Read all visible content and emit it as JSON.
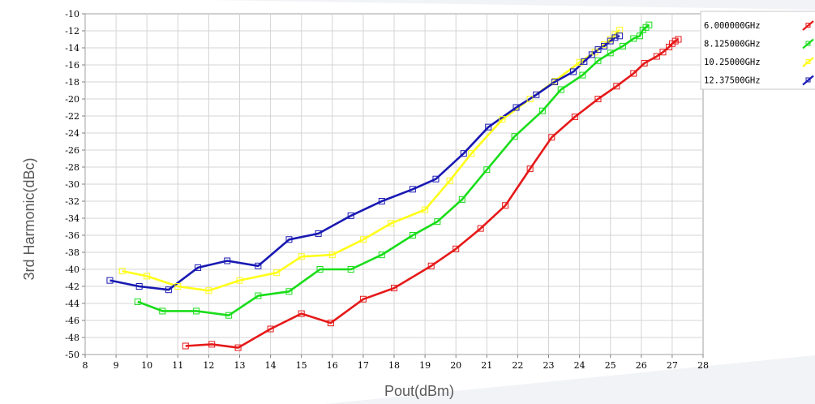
{
  "chart_data": {
    "type": "line",
    "xlabel": "Pout(dBm)",
    "ylabel": "3rd Harmonic(dBc)",
    "xlim": [
      8,
      28
    ],
    "ylim": [
      -50,
      -10
    ],
    "x_ticks": [
      "8",
      "9",
      "10",
      "11",
      "12",
      "13",
      "14",
      "15",
      "16",
      "17",
      "18",
      "19",
      "20",
      "21",
      "22",
      "23",
      "24",
      "25",
      "26",
      "27",
      "28"
    ],
    "y_ticks": [
      "-10",
      "-12",
      "-14",
      "-16",
      "-18",
      "-20",
      "-22",
      "-24",
      "-26",
      "-28",
      "-30",
      "-32",
      "-34",
      "-36",
      "-38",
      "-40",
      "-42",
      "-44",
      "-46",
      "-48",
      "-50"
    ],
    "grid": true,
    "legend_position": "top-right",
    "series": [
      {
        "name": "6.000000GHz",
        "color": "#e61919",
        "points": [
          [
            11.25,
            -49.0
          ],
          [
            12.1,
            -48.8
          ],
          [
            12.95,
            -49.2
          ],
          [
            14.0,
            -47.0
          ],
          [
            15.0,
            -45.2
          ],
          [
            15.95,
            -46.3
          ],
          [
            17.0,
            -43.5
          ],
          [
            18.0,
            -42.2
          ],
          [
            19.2,
            -39.6
          ],
          [
            20.0,
            -37.6
          ],
          [
            20.8,
            -35.2
          ],
          [
            21.6,
            -32.5
          ],
          [
            22.4,
            -28.2
          ],
          [
            23.1,
            -24.5
          ],
          [
            23.85,
            -22.1
          ],
          [
            24.6,
            -20.0
          ],
          [
            25.2,
            -18.5
          ],
          [
            25.75,
            -17.0
          ],
          [
            26.1,
            -15.8
          ],
          [
            26.5,
            -15.0
          ],
          [
            26.7,
            -14.5
          ],
          [
            26.9,
            -13.9
          ],
          [
            27.0,
            -13.5
          ],
          [
            27.1,
            -13.2
          ],
          [
            27.2,
            -13.0
          ]
        ]
      },
      {
        "name": "8.125000GHz",
        "color": "#19dd19",
        "points": [
          [
            9.7,
            -43.8
          ],
          [
            10.5,
            -44.9
          ],
          [
            11.6,
            -44.9
          ],
          [
            12.65,
            -45.4
          ],
          [
            13.6,
            -43.1
          ],
          [
            14.6,
            -42.6
          ],
          [
            15.6,
            -40.0
          ],
          [
            16.6,
            -40.0
          ],
          [
            17.6,
            -38.3
          ],
          [
            18.6,
            -36.0
          ],
          [
            19.4,
            -34.4
          ],
          [
            20.2,
            -31.8
          ],
          [
            21.0,
            -28.3
          ],
          [
            21.9,
            -24.4
          ],
          [
            22.8,
            -21.4
          ],
          [
            23.4,
            -18.9
          ],
          [
            24.1,
            -17.2
          ],
          [
            24.6,
            -15.5
          ],
          [
            25.0,
            -14.6
          ],
          [
            25.4,
            -13.8
          ],
          [
            25.75,
            -12.9
          ],
          [
            25.95,
            -12.6
          ],
          [
            26.05,
            -11.9
          ],
          [
            26.15,
            -11.6
          ],
          [
            26.25,
            -11.3
          ]
        ]
      },
      {
        "name": "10.25000GHz",
        "color": "#ffff1a",
        "points": [
          [
            9.2,
            -40.2
          ],
          [
            10.0,
            -40.8
          ],
          [
            11.0,
            -42.0
          ],
          [
            12.0,
            -42.5
          ],
          [
            13.0,
            -41.3
          ],
          [
            14.2,
            -40.4
          ],
          [
            15.0,
            -38.5
          ],
          [
            16.0,
            -38.3
          ],
          [
            17.0,
            -36.5
          ],
          [
            17.9,
            -34.6
          ],
          [
            19.0,
            -33.0
          ],
          [
            19.8,
            -29.6
          ],
          [
            20.5,
            -26.4
          ],
          [
            21.5,
            -22.4
          ],
          [
            22.4,
            -20.0
          ],
          [
            23.2,
            -17.9
          ],
          [
            24.0,
            -15.7
          ],
          [
            24.5,
            -14.5
          ],
          [
            24.8,
            -13.6
          ],
          [
            25.0,
            -13.0
          ],
          [
            25.15,
            -12.4
          ],
          [
            25.3,
            -11.9
          ]
        ]
      },
      {
        "name": "12.37500GHz",
        "color": "#1919b3",
        "points": [
          [
            8.8,
            -41.3
          ],
          [
            9.75,
            -42.0
          ],
          [
            10.7,
            -42.4
          ],
          [
            11.65,
            -39.8
          ],
          [
            12.6,
            -39.0
          ],
          [
            13.6,
            -39.6
          ],
          [
            14.6,
            -36.5
          ],
          [
            15.55,
            -35.8
          ],
          [
            16.6,
            -33.7
          ],
          [
            17.6,
            -32.0
          ],
          [
            18.6,
            -30.6
          ],
          [
            19.35,
            -29.4
          ],
          [
            20.25,
            -26.4
          ],
          [
            21.05,
            -23.3
          ],
          [
            21.95,
            -21.0
          ],
          [
            22.6,
            -19.5
          ],
          [
            23.2,
            -18.0
          ],
          [
            23.8,
            -16.8
          ],
          [
            24.15,
            -15.6
          ],
          [
            24.4,
            -14.8
          ],
          [
            24.6,
            -14.2
          ],
          [
            24.8,
            -13.8
          ],
          [
            25.0,
            -13.2
          ],
          [
            25.15,
            -12.8
          ],
          [
            25.3,
            -12.6
          ]
        ]
      }
    ]
  }
}
